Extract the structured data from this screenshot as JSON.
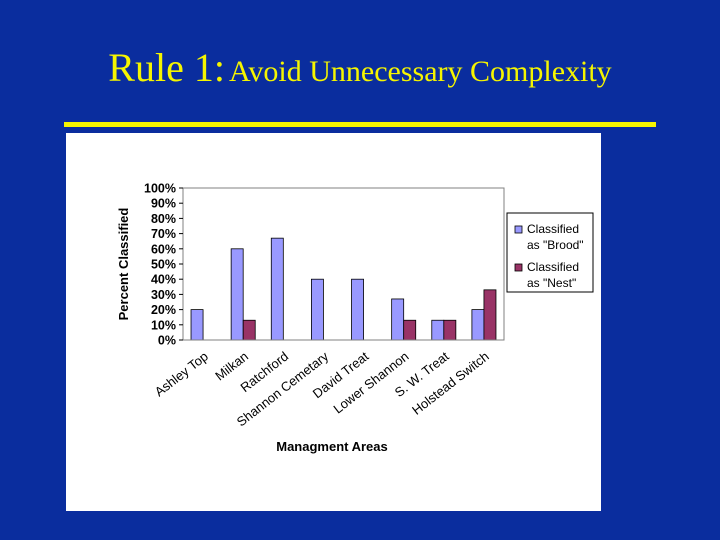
{
  "slide": {
    "title_main": "Rule 1:",
    "title_sub": "Avoid Unnecessary Complexity"
  },
  "colors": {
    "background": "#0a2d9e",
    "title": "#f5f500",
    "brood": "#9999ff",
    "nest": "#993366"
  },
  "chart_data": {
    "type": "bar",
    "title": "",
    "xlabel": "Managment Areas",
    "ylabel": "Percent Classified",
    "ylim": [
      0,
      100
    ],
    "yticks": [
      "0%",
      "10%",
      "20%",
      "30%",
      "40%",
      "50%",
      "60%",
      "70%",
      "80%",
      "90%",
      "100%"
    ],
    "grid": false,
    "legend_position": "right",
    "categories": [
      "Ashley Top",
      "Milkan",
      "Ratchford",
      "Shannon Cemetary",
      "David Treat",
      "Lower Shannon",
      "S. W. Treat",
      "Holstead Switch"
    ],
    "series": [
      {
        "name": "Classified as \"Brood\"",
        "legend_lines": [
          "Classified",
          "as \"Brood\""
        ],
        "color": "#9999ff",
        "values": [
          20,
          60,
          67,
          40,
          40,
          27,
          13,
          20
        ]
      },
      {
        "name": "Classified as \"Nest\"",
        "legend_lines": [
          "Classified",
          "as \"Nest\""
        ],
        "color": "#993366",
        "values": [
          0,
          13,
          0,
          0,
          0,
          13,
          13,
          33
        ]
      }
    ]
  }
}
